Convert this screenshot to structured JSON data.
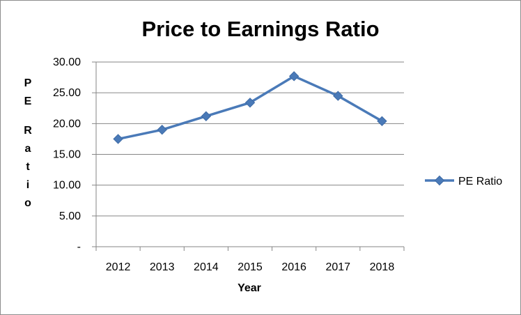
{
  "chart_data": {
    "type": "line",
    "title": "Price to Earnings Ratio",
    "xlabel": "Year",
    "ylabel": "PE Ratio",
    "categories": [
      "2012",
      "2013",
      "2014",
      "2015",
      "2016",
      "2017",
      "2018"
    ],
    "series": [
      {
        "name": "PE Ratio",
        "values": [
          17.5,
          19.0,
          21.2,
          23.4,
          27.7,
          24.5,
          20.4
        ]
      }
    ],
    "ylim": [
      0,
      30
    ],
    "yticks": [
      0,
      5,
      10,
      15,
      20,
      25,
      30
    ],
    "ytick_labels": [
      "-",
      "5.00",
      "10.00",
      "15.00",
      "20.00",
      "25.00",
      "30.00"
    ],
    "grid": true,
    "legend": "right",
    "colors": {
      "series": "#4a7ab8",
      "grid": "#868686",
      "axis": "#868686"
    }
  }
}
